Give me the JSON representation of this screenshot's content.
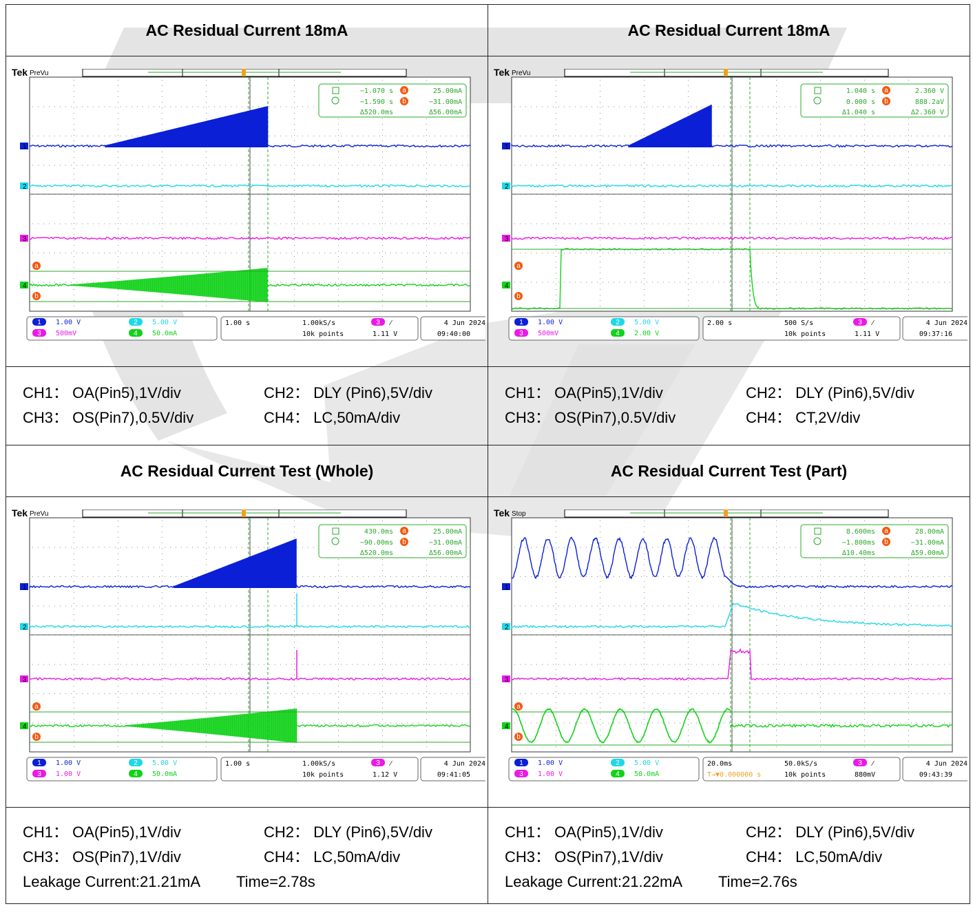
{
  "panels": [
    {
      "title": "AC Residual Current 18mA",
      "scope": {
        "brand": "Tek",
        "status": "PreVu",
        "cursor": {
          "row1_val": "−1.070 s",
          "row1_label": "a",
          "row1_meas": "25.00mA",
          "row2_val": "−1.590 s",
          "row2_label": "b",
          "row2_meas": "−31.00mA",
          "delta_t": "Δ520.0ms",
          "delta_v": "Δ56.00mA"
        },
        "ch1_scale": "1.00 V",
        "ch2_scale": "5.00 V",
        "ch3_scale": "500mV",
        "ch4_scale": "50.0mA",
        "timebase": "1.00 s",
        "trig_pos": "",
        "sample_rate": "1.00kS/s",
        "record": "10k points",
        "trig_level": "1.11 V",
        "date": "4 Jun  2024",
        "time": "09:40:00",
        "ch4_style": "lc_ramp_slow",
        "ch1_style": "ramp_trip_a",
        "ch2_spike": false,
        "ch3_style": "flat"
      },
      "notes": [
        [
          "CH1： OA(Pin5),1V/div",
          "CH2： DLY (Pin6),5V/div"
        ],
        [
          "CH3： OS(Pin7),0.5V/div",
          "CH4： LC,50mA/div"
        ]
      ]
    },
    {
      "title": "AC Residual Current 18mA",
      "scope": {
        "brand": "Tek",
        "status": "PreVu",
        "cursor": {
          "row1_val": "1.040 s",
          "row1_label": "a",
          "row1_meas": "2.360 V",
          "row2_val": "0.000 s",
          "row2_label": "b",
          "row2_meas": "888.2aV",
          "delta_t": "Δ1.040 s",
          "delta_v": "Δ2.360 V"
        },
        "ch1_scale": "1.00 V",
        "ch2_scale": "5.00 V",
        "ch3_scale": "500mV",
        "ch4_scale": "2.00 V",
        "timebase": "2.00 s",
        "trig_pos": "",
        "sample_rate": "500 S/s",
        "record": "10k points",
        "trig_level": "1.11 V",
        "date": "4 Jun  2024",
        "time": "09:37:16",
        "ch4_style": "ct_step",
        "ch1_style": "ramp_trip_b",
        "ch2_spike": false,
        "ch3_style": "flat"
      },
      "notes": [
        [
          "CH1： OA(Pin5),1V/div",
          "CH2： DLY (Pin6),5V/div"
        ],
        [
          "CH3： OS(Pin7),0.5V/div",
          "CH4： CT,2V/div"
        ]
      ]
    },
    {
      "title": "AC Residual Current Test (Whole)",
      "scope": {
        "brand": "Tek",
        "status": "PreVu",
        "cursor": {
          "row1_val": "430.0ms",
          "row1_label": "a",
          "row1_meas": "25.00mA",
          "row2_val": "−90.00ms",
          "row2_label": "b",
          "row2_meas": "−31.00mA",
          "delta_t": "Δ520.0ms",
          "delta_v": "Δ56.00mA"
        },
        "ch1_scale": "1.00 V",
        "ch2_scale": "5.00 V",
        "ch3_scale": "1.00 V",
        "ch4_scale": "50.0mA",
        "timebase": "1.00 s",
        "trig_pos": "",
        "sample_rate": "1.00kS/s",
        "record": "10k points",
        "trig_level": "1.12 V",
        "date": "4 Jun  2024",
        "time": "09:41:05",
        "ch4_style": "lc_ramp_late",
        "ch1_style": "ramp_trip_c",
        "ch2_spike": true,
        "ch3_style": "spike"
      },
      "notes": [
        [
          "CH1： OA(Pin5),1V/div",
          "CH2： DLY (Pin6),5V/div"
        ],
        [
          "CH3： OS(Pin7),1V/div",
          "CH4： LC,50mA/div"
        ],
        [
          "Leakage Current:21.21mA",
          "Time=2.78s"
        ]
      ]
    },
    {
      "title": "AC Residual Current Test (Part)",
      "scope": {
        "brand": "Tek",
        "status": "Stop",
        "cursor": {
          "row1_val": "8.600ms",
          "row1_label": "a",
          "row1_meas": "28.00mA",
          "row2_val": "−1.800ms",
          "row2_label": "b",
          "row2_meas": "−31.00mA",
          "delta_t": "Δ10.40ms",
          "delta_v": "Δ59.00mA"
        },
        "ch1_scale": "1.00 V",
        "ch2_scale": "5.00 V",
        "ch3_scale": "1.00 V",
        "ch4_scale": "50.0mA",
        "timebase": "20.0ms",
        "trig_pos": "T→▼0.000000 s",
        "sample_rate": "50.0kS/s",
        "record": "10k points",
        "trig_level": "880mV",
        "date": "4 Jun  2024",
        "time": "09:43:39",
        "ch4_style": "sine_part",
        "ch1_style": "sine_part",
        "ch2_spike": false,
        "ch3_style": "pulse"
      },
      "notes": [
        [
          "CH1： OA(Pin5),1V/div",
          "CH2： DLY (Pin6),5V/div"
        ],
        [
          "CH3： OS(Pin7),1V/div",
          "CH4： LC,50mA/div"
        ],
        [
          "Leakage Current:21.22mA",
          "Time=2.76s"
        ]
      ]
    }
  ],
  "colors": {
    "ch1": "#0a1fd6",
    "ch2": "#1ed8e8",
    "ch3": "#ec18e6",
    "ch4": "#12d21a",
    "cursor": "#2aa82a",
    "grid": "#8a8a8a",
    "watermark": "#d9d9d9"
  }
}
